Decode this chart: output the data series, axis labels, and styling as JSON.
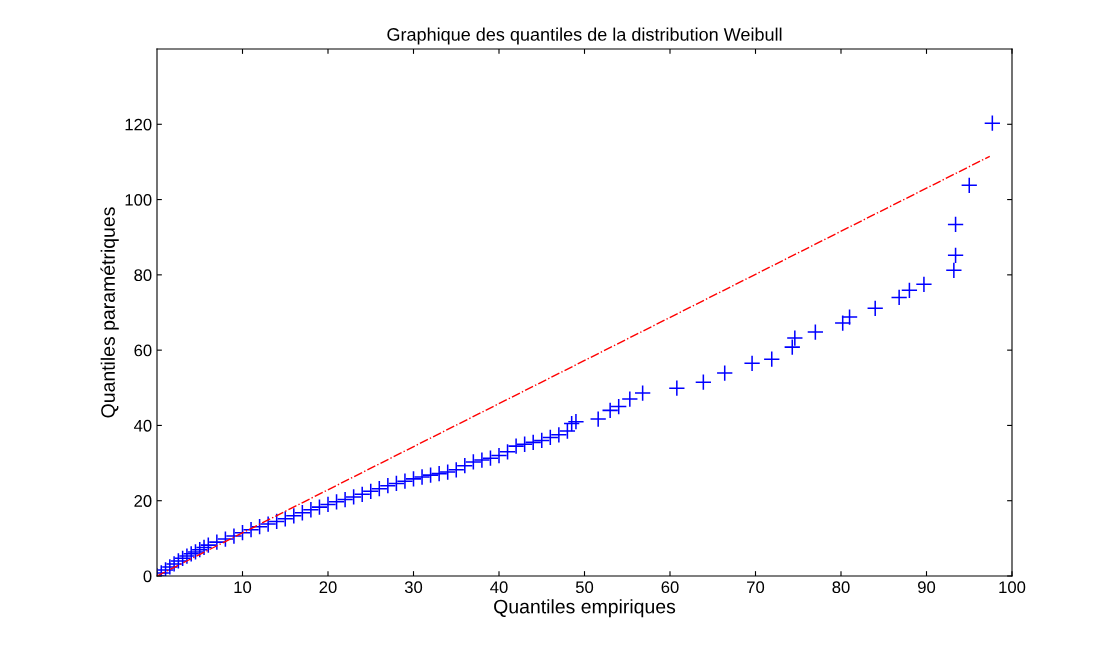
{
  "chart_data": {
    "type": "scatter",
    "title": "Graphique des quantiles de la distribution Weibull",
    "xlabel": "Quantiles empiriques",
    "ylabel": "Quantiles paramétriques",
    "xlim": [
      0,
      100
    ],
    "ylim": [
      0,
      140
    ],
    "xticks": [
      10,
      20,
      30,
      40,
      50,
      60,
      70,
      80,
      90,
      100
    ],
    "yticks": [
      0,
      20,
      40,
      60,
      80,
      100,
      120
    ],
    "grid": false,
    "legend": false,
    "series": [
      {
        "marker": "cross",
        "color": "#0000ff",
        "x": [
          0,
          0.5,
          1,
          1.5,
          2,
          2.5,
          3,
          3.5,
          4,
          4.5,
          5,
          5.5,
          6,
          7,
          8,
          9,
          10,
          11,
          12,
          13,
          14,
          15,
          16,
          17,
          18,
          19,
          20,
          21,
          22,
          23,
          24,
          25,
          26,
          27,
          28,
          29,
          30,
          31,
          32,
          33,
          34,
          35,
          36,
          37,
          38,
          39,
          40,
          41,
          42,
          43,
          44,
          45,
          46,
          47,
          48,
          48.5,
          49,
          51.6,
          53,
          54,
          55.3,
          56.8,
          60.8,
          63.9,
          66.4,
          69.6,
          71.9,
          74.3,
          74.6,
          77,
          80.2,
          81,
          84,
          86.8,
          88,
          89.7,
          93.2,
          93.4,
          93.4,
          95,
          97.7
        ],
        "values": [
          0,
          0.8,
          1.6,
          2.4,
          3.2,
          4,
          4.7,
          5.3,
          5.9,
          6.4,
          7,
          7.6,
          8.2,
          9,
          9.8,
          10.6,
          11.5,
          12.3,
          13.1,
          13.8,
          14.5,
          15.2,
          16,
          16.8,
          17.6,
          18.3,
          19,
          19.7,
          20.3,
          21,
          21.7,
          22.5,
          23.2,
          24,
          24.6,
          25.2,
          25.8,
          26.3,
          26.8,
          27.2,
          27.6,
          28.2,
          29.3,
          30.3,
          30.8,
          31.3,
          32,
          33,
          34.5,
          35,
          35.5,
          36,
          36.8,
          37.5,
          38.5,
          40.5,
          41,
          41.7,
          44,
          45,
          47,
          48.6,
          49.9,
          51.5,
          53.9,
          56.5,
          57.6,
          60.8,
          63.2,
          64.8,
          67.2,
          68.8,
          71.1,
          74,
          75.9,
          77.5,
          81.2,
          85.2,
          93.4,
          103.8,
          120.3
        ]
      },
      {
        "type": "line",
        "color": "#ff0000",
        "line_style": "dashdot",
        "x": [
          0,
          97.4
        ],
        "values": [
          0,
          111.5
        ]
      }
    ]
  }
}
